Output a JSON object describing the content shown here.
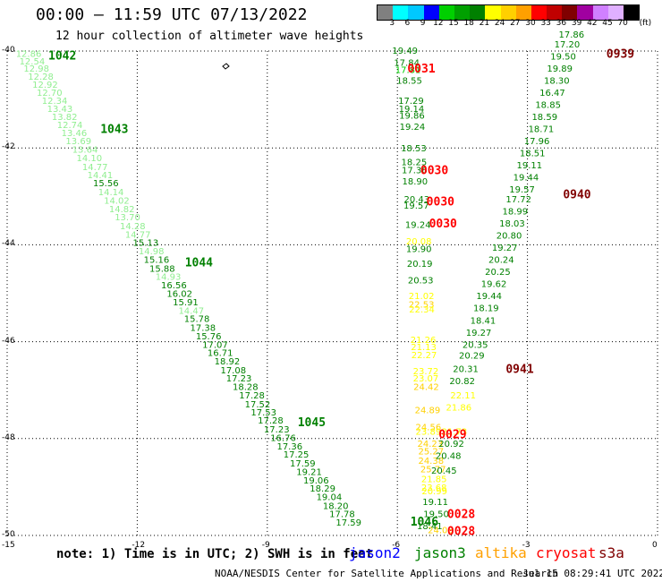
{
  "title": "00:00 — 11:59 UTC 07/13/2022",
  "subtitle": "12 hour collection of altimeter wave heights",
  "legend": {
    "unit": "(ft)",
    "swatches": [
      "#808080",
      "#00ffff",
      "#00c8ff",
      "#0000ff",
      "#00d000",
      "#00a000",
      "#008000",
      "#ffff00",
      "#ffd000",
      "#ffa000",
      "#ff0000",
      "#c00000",
      "#800000",
      "#a000a0",
      "#d080ff",
      "#e0b0ff",
      "#000000"
    ],
    "labels": [
      "3",
      "6",
      "9",
      "12",
      "15",
      "18",
      "21",
      "24",
      "27",
      "30",
      "33",
      "36",
      "39",
      "42",
      "45",
      "70"
    ]
  },
  "axes": {
    "x_ticks": [
      "-15",
      "-12",
      "-9",
      "-6",
      "-3",
      "0"
    ],
    "y_ticks": [
      "-40",
      "-42",
      "-44",
      "-46",
      "-48",
      "-50"
    ]
  },
  "track_labels": [
    {
      "text": "1042",
      "color": "#008000",
      "lon": -14.05,
      "lat": -40.08
    },
    {
      "text": "1043",
      "color": "#008000",
      "lon": -12.85,
      "lat": -41.6
    },
    {
      "text": "1044",
      "color": "#008000",
      "lon": -10.9,
      "lat": -44.35
    },
    {
      "text": "1045",
      "color": "#008000",
      "lon": -8.3,
      "lat": -47.65
    },
    {
      "text": "1046",
      "color": "#008000",
      "lon": -5.7,
      "lat": -49.7
    },
    {
      "text": "0031",
      "color": "#ff0000",
      "lon": -5.77,
      "lat": -40.35
    },
    {
      "text": "0030",
      "color": "#ff0000",
      "lon": -5.47,
      "lat": -42.45
    },
    {
      "text": "0030",
      "color": "#ff0000",
      "lon": -5.33,
      "lat": -43.1
    },
    {
      "text": "0030",
      "color": "#ff0000",
      "lon": -5.27,
      "lat": -43.55
    },
    {
      "text": "0029",
      "color": "#ff0000",
      "lon": -5.05,
      "lat": -47.9
    },
    {
      "text": "0028",
      "color": "#ff0000",
      "lon": -4.85,
      "lat": -49.55
    },
    {
      "text": "0028",
      "color": "#ff0000",
      "lon": -4.85,
      "lat": -49.9
    },
    {
      "text": "0939",
      "color": "#800000",
      "lon": -1.18,
      "lat": -40.05
    },
    {
      "text": "0940",
      "color": "#800000",
      "lon": -2.18,
      "lat": -42.95
    },
    {
      "text": "0941",
      "color": "#800000",
      "lon": -3.5,
      "lat": -46.55
    }
  ],
  "wave_heights": [
    {
      "v": "12.86",
      "c": "#90ee90",
      "lon": -14.8,
      "lat": -40.05
    },
    {
      "v": "12.54",
      "c": "#90ee90",
      "lon": -14.72,
      "lat": -40.2
    },
    {
      "v": "12.98",
      "c": "#90ee90",
      "lon": -14.62,
      "lat": -40.35
    },
    {
      "v": "12.28",
      "c": "#90ee90",
      "lon": -14.52,
      "lat": -40.52
    },
    {
      "v": "12.92",
      "c": "#90ee90",
      "lon": -14.42,
      "lat": -40.68
    },
    {
      "v": "12.70",
      "c": "#90ee90",
      "lon": -14.32,
      "lat": -40.85
    },
    {
      "v": "12.34",
      "c": "#90ee90",
      "lon": -14.2,
      "lat": -41.02
    },
    {
      "v": "13.43",
      "c": "#90ee90",
      "lon": -14.08,
      "lat": -41.18
    },
    {
      "v": "13.82",
      "c": "#90ee90",
      "lon": -13.97,
      "lat": -41.35
    },
    {
      "v": "12.74",
      "c": "#90ee90",
      "lon": -13.85,
      "lat": -41.52
    },
    {
      "v": "13.46",
      "c": "#90ee90",
      "lon": -13.75,
      "lat": -41.68
    },
    {
      "v": "13.69",
      "c": "#90ee90",
      "lon": -13.65,
      "lat": -41.85
    },
    {
      "v": "13.64",
      "c": "#90ee90",
      "lon": -13.5,
      "lat": -42.02
    },
    {
      "v": "14.10",
      "c": "#90ee90",
      "lon": -13.4,
      "lat": -42.2
    },
    {
      "v": "14.77",
      "c": "#90ee90",
      "lon": -13.27,
      "lat": -42.38
    },
    {
      "v": "14.41",
      "c": "#90ee90",
      "lon": -13.15,
      "lat": -42.55
    },
    {
      "v": "15.56",
      "c": "#008000",
      "lon": -13.02,
      "lat": -42.72
    },
    {
      "v": "14.14",
      "c": "#90ee90",
      "lon": -12.9,
      "lat": -42.9
    },
    {
      "v": "14.02",
      "c": "#90ee90",
      "lon": -12.77,
      "lat": -43.08
    },
    {
      "v": "14.82",
      "c": "#90ee90",
      "lon": -12.65,
      "lat": -43.25
    },
    {
      "v": "13.70",
      "c": "#90ee90",
      "lon": -12.52,
      "lat": -43.42
    },
    {
      "v": "14.28",
      "c": "#90ee90",
      "lon": -12.4,
      "lat": -43.6
    },
    {
      "v": "14.77",
      "c": "#90ee90",
      "lon": -12.28,
      "lat": -43.78
    },
    {
      "v": "15.13",
      "c": "#008000",
      "lon": -12.1,
      "lat": -43.95
    },
    {
      "v": "14.98",
      "c": "#90ee90",
      "lon": -11.97,
      "lat": -44.12
    },
    {
      "v": "15.16",
      "c": "#008000",
      "lon": -11.85,
      "lat": -44.3
    },
    {
      "v": "15.88",
      "c": "#008000",
      "lon": -11.72,
      "lat": -44.48
    },
    {
      "v": "14.93",
      "c": "#90ee90",
      "lon": -11.58,
      "lat": -44.65
    },
    {
      "v": "16.56",
      "c": "#008000",
      "lon": -11.45,
      "lat": -44.82
    },
    {
      "v": "16.02",
      "c": "#008000",
      "lon": -11.32,
      "lat": -45.0
    },
    {
      "v": "15.91",
      "c": "#008000",
      "lon": -11.18,
      "lat": -45.18
    },
    {
      "v": "14.47",
      "c": "#90ee90",
      "lon": -11.05,
      "lat": -45.35
    },
    {
      "v": "15.78",
      "c": "#008000",
      "lon": -10.92,
      "lat": -45.52
    },
    {
      "v": "17.38",
      "c": "#008000",
      "lon": -10.78,
      "lat": -45.7
    },
    {
      "v": "15.76",
      "c": "#008000",
      "lon": -10.65,
      "lat": -45.88
    },
    {
      "v": "17.07",
      "c": "#008000",
      "lon": -10.5,
      "lat": -46.05
    },
    {
      "v": "16.71",
      "c": "#008000",
      "lon": -10.38,
      "lat": -46.22
    },
    {
      "v": "18.92",
      "c": "#008000",
      "lon": -10.22,
      "lat": -46.4
    },
    {
      "v": "17.08",
      "c": "#008000",
      "lon": -10.08,
      "lat": -46.58
    },
    {
      "v": "17.23",
      "c": "#008000",
      "lon": -9.95,
      "lat": -46.75
    },
    {
      "v": "18.28",
      "c": "#008000",
      "lon": -9.8,
      "lat": -46.92
    },
    {
      "v": "17.28",
      "c": "#008000",
      "lon": -9.65,
      "lat": -47.1
    },
    {
      "v": "17.52",
      "c": "#008000",
      "lon": -9.52,
      "lat": -47.28
    },
    {
      "v": "17.53",
      "c": "#008000",
      "lon": -9.38,
      "lat": -47.45
    },
    {
      "v": "17.28",
      "c": "#008000",
      "lon": -9.22,
      "lat": -47.62
    },
    {
      "v": "17.23",
      "c": "#008000",
      "lon": -9.08,
      "lat": -47.8
    },
    {
      "v": "16.76",
      "c": "#008000",
      "lon": -8.93,
      "lat": -47.98
    },
    {
      "v": "17.36",
      "c": "#008000",
      "lon": -8.78,
      "lat": -48.15
    },
    {
      "v": "17.25",
      "c": "#008000",
      "lon": -8.63,
      "lat": -48.32
    },
    {
      "v": "17.59",
      "c": "#008000",
      "lon": -8.48,
      "lat": -48.5
    },
    {
      "v": "19.21",
      "c": "#008000",
      "lon": -8.33,
      "lat": -48.68
    },
    {
      "v": "19.06",
      "c": "#008000",
      "lon": -8.17,
      "lat": -48.85
    },
    {
      "v": "18.29",
      "c": "#008000",
      "lon": -8.02,
      "lat": -49.02
    },
    {
      "v": "19.04",
      "c": "#008000",
      "lon": -7.87,
      "lat": -49.2
    },
    {
      "v": "18.20",
      "c": "#008000",
      "lon": -7.72,
      "lat": -49.38
    },
    {
      "v": "17.78",
      "c": "#008000",
      "lon": -7.57,
      "lat": -49.55
    },
    {
      "v": "17.59",
      "c": "#008000",
      "lon": -7.42,
      "lat": -49.72
    },
    {
      "v": "19.49",
      "c": "#008000",
      "lon": -6.12,
      "lat": -39.98
    },
    {
      "v": "17.84",
      "c": "#008000",
      "lon": -6.08,
      "lat": -40.23
    },
    {
      "v": "17.81",
      "c": "#00d000",
      "lon": -6.05,
      "lat": -40.38
    },
    {
      "v": "18.55",
      "c": "#008000",
      "lon": -6.02,
      "lat": -40.6
    },
    {
      "v": "17.29",
      "c": "#008000",
      "lon": -5.98,
      "lat": -41.02
    },
    {
      "v": "19.14",
      "c": "#008000",
      "lon": -5.97,
      "lat": -41.18
    },
    {
      "v": "19.86",
      "c": "#008000",
      "lon": -5.96,
      "lat": -41.32
    },
    {
      "v": "19.24",
      "c": "#008000",
      "lon": -5.95,
      "lat": -41.55
    },
    {
      "v": "18.53",
      "c": "#008000",
      "lon": -5.92,
      "lat": -42.0
    },
    {
      "v": "18.25",
      "c": "#008000",
      "lon": -5.91,
      "lat": -42.28
    },
    {
      "v": "17.36",
      "c": "#008000",
      "lon": -5.9,
      "lat": -42.45
    },
    {
      "v": "18.90",
      "c": "#008000",
      "lon": -5.89,
      "lat": -42.68
    },
    {
      "v": "20.43",
      "c": "#008000",
      "lon": -5.85,
      "lat": -43.05
    },
    {
      "v": "19.57",
      "c": "#008000",
      "lon": -5.86,
      "lat": -43.18
    },
    {
      "v": "19.24",
      "c": "#008000",
      "lon": -5.82,
      "lat": -43.58
    },
    {
      "v": "20.08",
      "c": "#ffff00",
      "lon": -5.8,
      "lat": -43.92
    },
    {
      "v": "19.90",
      "c": "#008000",
      "lon": -5.8,
      "lat": -44.08
    },
    {
      "v": "20.19",
      "c": "#008000",
      "lon": -5.78,
      "lat": -44.38
    },
    {
      "v": "20.53",
      "c": "#008000",
      "lon": -5.76,
      "lat": -44.72
    },
    {
      "v": "21.02",
      "c": "#ffff00",
      "lon": -5.74,
      "lat": -45.05
    },
    {
      "v": "22.53",
      "c": "#ffd000",
      "lon": -5.74,
      "lat": -45.22
    },
    {
      "v": "22.34",
      "c": "#ffff00",
      "lon": -5.73,
      "lat": -45.32
    },
    {
      "v": "21.26",
      "c": "#ffff00",
      "lon": -5.7,
      "lat": -45.95
    },
    {
      "v": "21.13",
      "c": "#ffff00",
      "lon": -5.69,
      "lat": -46.1
    },
    {
      "v": "22.27",
      "c": "#ffff00",
      "lon": -5.68,
      "lat": -46.27
    },
    {
      "v": "23.72",
      "c": "#ffff00",
      "lon": -5.64,
      "lat": -46.6
    },
    {
      "v": "23.07",
      "c": "#ffff00",
      "lon": -5.64,
      "lat": -46.75
    },
    {
      "v": "24.42",
      "c": "#ffd000",
      "lon": -5.63,
      "lat": -46.92
    },
    {
      "v": "24.89",
      "c": "#ffd000",
      "lon": -5.6,
      "lat": -47.4
    },
    {
      "v": "24.56",
      "c": "#ffd000",
      "lon": -5.58,
      "lat": -47.75
    },
    {
      "v": "23.89",
      "c": "#ffff00",
      "lon": -5.58,
      "lat": -47.85
    },
    {
      "v": "24.23",
      "c": "#ffd000",
      "lon": -5.54,
      "lat": -48.1
    },
    {
      "v": "25.27",
      "c": "#ffd000",
      "lon": -5.52,
      "lat": -48.25
    },
    {
      "v": "24.38",
      "c": "#ffd000",
      "lon": -5.52,
      "lat": -48.45
    },
    {
      "v": "25.77",
      "c": "#ffd000",
      "lon": -5.47,
      "lat": -48.62
    },
    {
      "v": "21.85",
      "c": "#ffff00",
      "lon": -5.45,
      "lat": -48.83
    },
    {
      "v": "23.68",
      "c": "#ffff00",
      "lon": -5.45,
      "lat": -49.0
    },
    {
      "v": "20.99",
      "c": "#ffff00",
      "lon": -5.44,
      "lat": -49.08
    },
    {
      "v": "24.08",
      "c": "#ffd000",
      "lon": -5.3,
      "lat": -49.88
    },
    {
      "v": "19.11",
      "c": "#008000",
      "lon": -5.42,
      "lat": -49.3
    },
    {
      "v": "19.50",
      "c": "#008000",
      "lon": -5.4,
      "lat": -49.55
    },
    {
      "v": "18.41",
      "c": "#008000",
      "lon": -5.55,
      "lat": -49.8
    },
    {
      "v": "20.45",
      "c": "#008000",
      "lon": -5.22,
      "lat": -48.65
    },
    {
      "v": "20.48",
      "c": "#008000",
      "lon": -5.12,
      "lat": -48.35
    },
    {
      "v": "20.92",
      "c": "#008000",
      "lon": -5.05,
      "lat": -48.1
    },
    {
      "v": "21.73",
      "c": "#ffff00",
      "lon": -4.98,
      "lat": -47.85
    },
    {
      "v": "21.86",
      "c": "#ffff00",
      "lon": -4.88,
      "lat": -47.35
    },
    {
      "v": "22.11",
      "c": "#ffff00",
      "lon": -4.78,
      "lat": -47.1
    },
    {
      "v": "20.82",
      "c": "#008000",
      "lon": -4.8,
      "lat": -46.8
    },
    {
      "v": "20.31",
      "c": "#008000",
      "lon": -4.72,
      "lat": -46.55
    },
    {
      "v": "20.29",
      "c": "#008000",
      "lon": -4.58,
      "lat": -46.28
    },
    {
      "v": "20.35",
      "c": "#008000",
      "lon": -4.5,
      "lat": -46.05
    },
    {
      "v": "19.27",
      "c": "#008000",
      "lon": -4.42,
      "lat": -45.8
    },
    {
      "v": "18.41",
      "c": "#008000",
      "lon": -4.32,
      "lat": -45.55
    },
    {
      "v": "18.19",
      "c": "#008000",
      "lon": -4.25,
      "lat": -45.3
    },
    {
      "v": "19.44",
      "c": "#008000",
      "lon": -4.18,
      "lat": -45.05
    },
    {
      "v": "19.62",
      "c": "#008000",
      "lon": -4.07,
      "lat": -44.8
    },
    {
      "v": "20.25",
      "c": "#008000",
      "lon": -3.98,
      "lat": -44.55
    },
    {
      "v": "20.24",
      "c": "#008000",
      "lon": -3.9,
      "lat": -44.3
    },
    {
      "v": "19.27",
      "c": "#008000",
      "lon": -3.82,
      "lat": -44.05
    },
    {
      "v": "20.80",
      "c": "#008000",
      "lon": -3.72,
      "lat": -43.8
    },
    {
      "v": "18.03",
      "c": "#008000",
      "lon": -3.65,
      "lat": -43.55
    },
    {
      "v": "18.99",
      "c": "#008000",
      "lon": -3.58,
      "lat": -43.3
    },
    {
      "v": "17.72",
      "c": "#008000",
      "lon": -3.5,
      "lat": -43.05
    },
    {
      "v": "19.57",
      "c": "#008000",
      "lon": -3.42,
      "lat": -42.85
    },
    {
      "v": "19.44",
      "c": "#008000",
      "lon": -3.33,
      "lat": -42.6
    },
    {
      "v": "19.11",
      "c": "#008000",
      "lon": -3.25,
      "lat": -42.35
    },
    {
      "v": "18.51",
      "c": "#008000",
      "lon": -3.18,
      "lat": -42.1
    },
    {
      "v": "17.96",
      "c": "#008000",
      "lon": -3.08,
      "lat": -41.85
    },
    {
      "v": "18.71",
      "c": "#008000",
      "lon": -2.98,
      "lat": -41.6
    },
    {
      "v": "18.59",
      "c": "#008000",
      "lon": -2.9,
      "lat": -41.35
    },
    {
      "v": "18.85",
      "c": "#008000",
      "lon": -2.82,
      "lat": -41.1
    },
    {
      "v": "16.47",
      "c": "#008000",
      "lon": -2.72,
      "lat": -40.85
    },
    {
      "v": "18.30",
      "c": "#008000",
      "lon": -2.62,
      "lat": -40.6
    },
    {
      "v": "19.89",
      "c": "#008000",
      "lon": -2.55,
      "lat": -40.35
    },
    {
      "v": "19.50",
      "c": "#008000",
      "lon": -2.47,
      "lat": -40.1
    },
    {
      "v": "17.20",
      "c": "#008000",
      "lon": -2.38,
      "lat": -39.85
    },
    {
      "v": "17.86",
      "c": "#008000",
      "lon": -2.28,
      "lat": -39.65
    }
  ],
  "satellites": [
    {
      "name": "jason2",
      "color": "#0000ff"
    },
    {
      "name": "jason3",
      "color": "#008000"
    },
    {
      "name": "altika",
      "color": "#ffa000"
    },
    {
      "name": "cryosat",
      "color": "#ff0000"
    },
    {
      "name": "s3a",
      "color": "#800000"
    }
  ],
  "note": "note: 1) Time is in UTC; 2) SWH is in feet",
  "footer_left": "NOAA/NESDIS Center for Satellite Applications and Research",
  "footer_right": "Jul 15 08:29:41 UTC 2022"
}
